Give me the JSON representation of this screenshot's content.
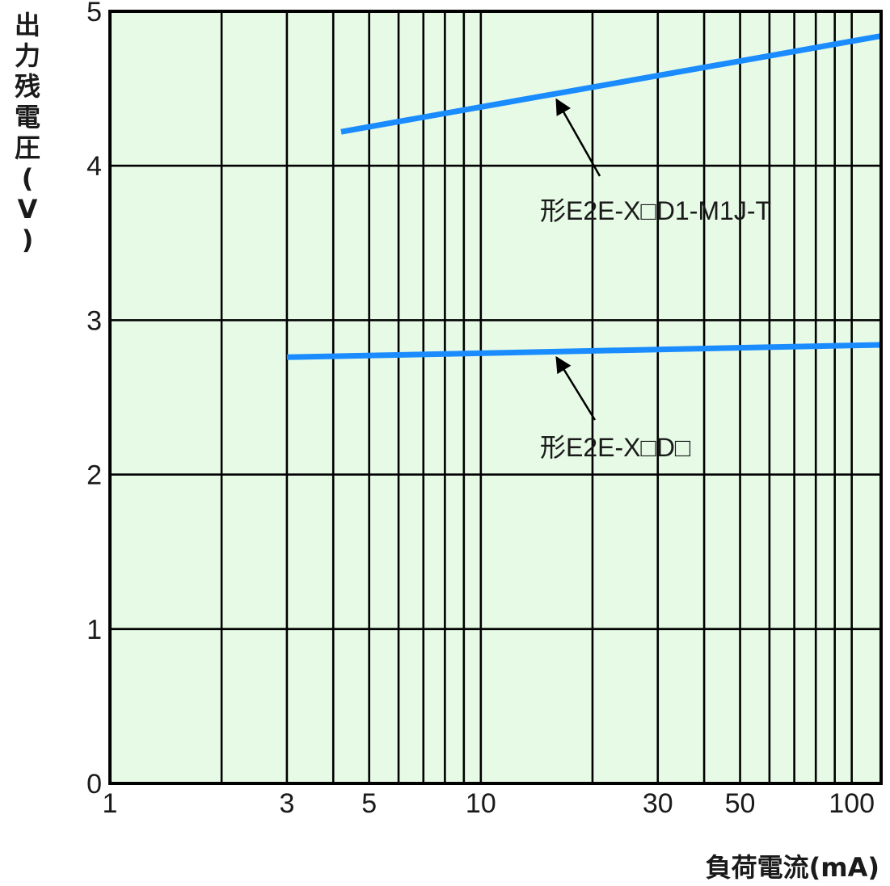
{
  "chart_data": {
    "type": "line",
    "title": "",
    "xlabel": "負荷電流(mA)",
    "ylabel": "出力残電圧(V)",
    "x_scale": "log",
    "xlim": [
      1,
      120
    ],
    "ylim": [
      0,
      5
    ],
    "x_ticks": [
      {
        "value": 1,
        "label": "1"
      },
      {
        "value": 3,
        "label": "3"
      },
      {
        "value": 5,
        "label": "5"
      },
      {
        "value": 10,
        "label": "10"
      },
      {
        "value": 30,
        "label": "30"
      },
      {
        "value": 50,
        "label": "50"
      },
      {
        "value": 100,
        "label": "100"
      }
    ],
    "y_ticks": [
      0,
      1,
      2,
      3,
      4,
      5
    ],
    "grid": true,
    "background_color": "#e6fae6",
    "line_color": "#1a8cff",
    "series": [
      {
        "name": "形E2E-X□D1-M1J-T",
        "x": [
          4.2,
          120
        ],
        "y": [
          4.22,
          4.84
        ],
        "annotation_arrow_to": {
          "x": 16,
          "y": 4.47
        }
      },
      {
        "name": "形E2E-X□D□",
        "x": [
          3,
          120
        ],
        "y": [
          2.76,
          2.84
        ],
        "annotation_arrow_to": {
          "x": 16,
          "y": 2.8
        }
      }
    ]
  }
}
